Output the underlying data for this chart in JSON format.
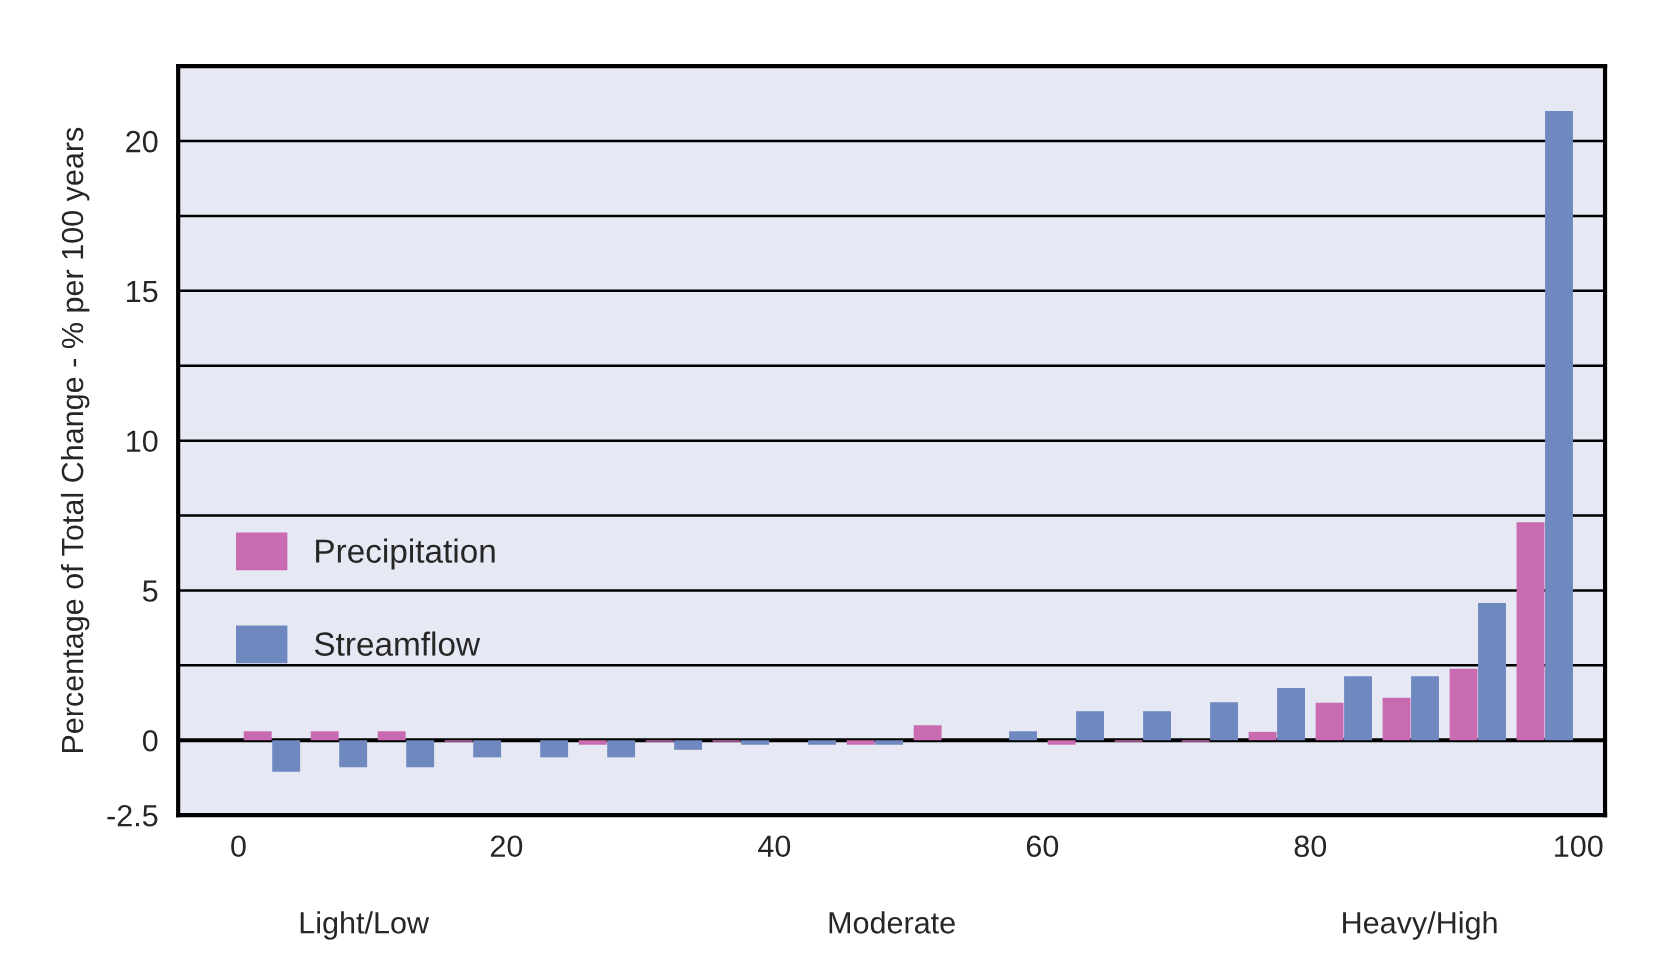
{
  "chart_data": {
    "type": "bar",
    "ylabel": "Percentage of Total Change - % per 100 years",
    "x": [
      2.5,
      7.5,
      12.5,
      17.5,
      22.5,
      27.5,
      32.5,
      37.5,
      42.5,
      47.5,
      52.5,
      57.5,
      62.5,
      67.5,
      72.5,
      77.5,
      82.5,
      87.5,
      92.5,
      97.5
    ],
    "series": [
      {
        "name": "Precipitation",
        "color": "#c96bb0",
        "values": [
          0.3,
          0.3,
          0.3,
          -0.05,
          null,
          -0.15,
          -0.05,
          -0.05,
          null,
          -0.15,
          0.5,
          null,
          -0.15,
          -0.05,
          -0.05,
          0.28,
          1.25,
          1.42,
          2.39,
          7.28
        ]
      },
      {
        "name": "Streamflow",
        "color": "#6f89c0",
        "values": [
          -1.05,
          -0.9,
          -0.9,
          -0.57,
          -0.57,
          -0.57,
          -0.32,
          -0.15,
          -0.15,
          -0.15,
          null,
          0.3,
          0.97,
          0.97,
          1.27,
          1.74,
          2.14,
          2.14,
          4.58,
          21.0
        ]
      }
    ],
    "xlim": [
      -4.5,
      102
    ],
    "xticks": [
      0,
      20,
      40,
      60,
      80,
      100
    ],
    "ylim": [
      -2.5,
      22.5
    ],
    "yticks": [
      -2.5,
      0,
      {
        "value": 2.5,
        "label": null
      },
      5,
      {
        "value": 7.5,
        "label": null
      },
      10,
      {
        "value": 12.5,
        "label": null
      },
      15,
      {
        "value": 17.5,
        "label": null
      },
      20
    ],
    "grid": "y",
    "legend": "left",
    "annotations": [
      "Light/Low",
      "Moderate",
      "Heavy/High"
    ]
  }
}
